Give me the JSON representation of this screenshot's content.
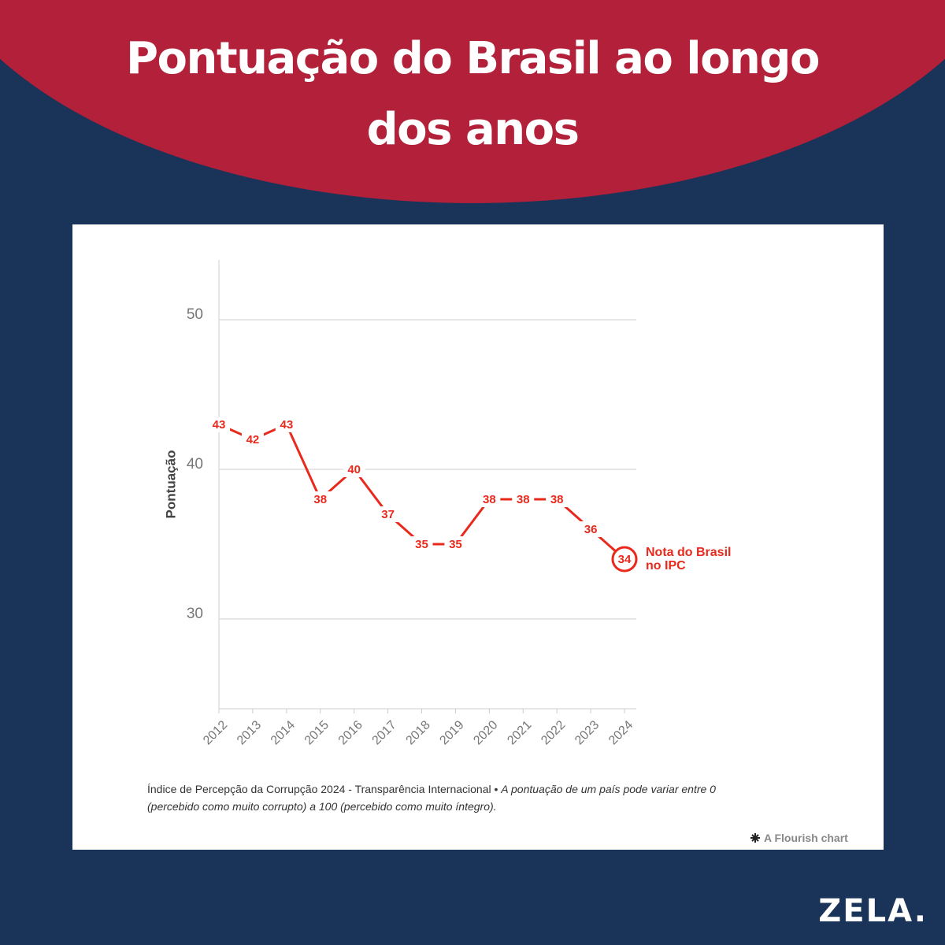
{
  "chart_data": {
    "type": "line",
    "title": "Pontuação do Brasil ao longo dos anos",
    "y_label": "Pontuação",
    "x": [
      2012,
      2013,
      2014,
      2015,
      2016,
      2017,
      2018,
      2019,
      2020,
      2021,
      2022,
      2023,
      2024
    ],
    "values": [
      43,
      42,
      43,
      38,
      40,
      37,
      35,
      35,
      38,
      38,
      38,
      36,
      34
    ],
    "color": "#e8291c",
    "xlim": [
      2012,
      2024
    ],
    "xticks": [
      2012,
      2013,
      2014,
      2015,
      2016,
      2017,
      2018,
      2019,
      2020,
      2021,
      2022,
      2023,
      2024
    ],
    "ylim": [
      24,
      54
    ],
    "yticks": [
      30,
      40,
      50
    ],
    "grid": true,
    "annotation": [
      "Nota do Brasil",
      "no IPC"
    ],
    "source": "Índice de Percepção da Corrupção 2024 - Transparência Internacional •",
    "note": "A pontuação de um país pode variar entre 0 (percebido como muito corrupto) a 100 (percebido como muito íntegro).",
    "credit": "A Flourish chart"
  },
  "brand": "ZELA."
}
